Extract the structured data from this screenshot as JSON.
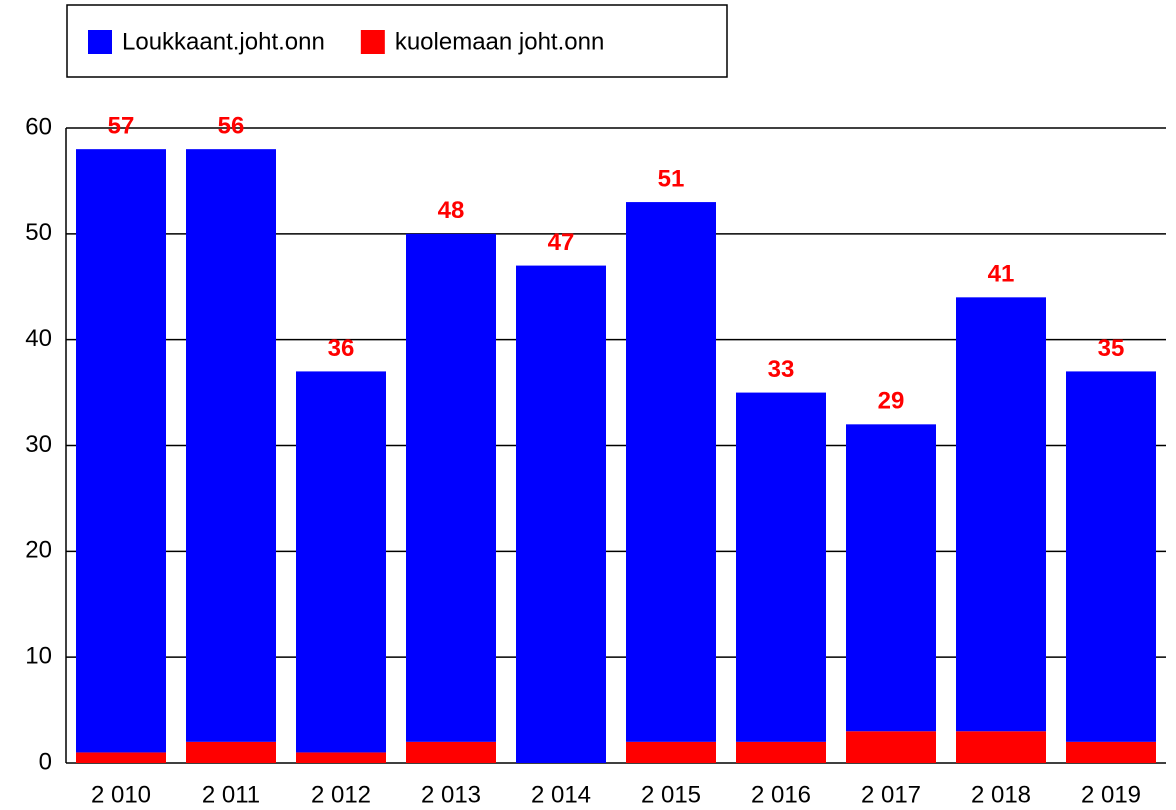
{
  "chart_data": {
    "type": "stacked_bar",
    "categories": [
      "2 010",
      "2 011",
      "2 012",
      "2 013",
      "2 014",
      "2 015",
      "2 016",
      "2 017",
      "2 018",
      "2 019"
    ],
    "series": [
      {
        "name": "kuolemaan joht.onn",
        "color": "#ff0000",
        "values": [
          1,
          2,
          1,
          2,
          0,
          2,
          2,
          3,
          3,
          2
        ]
      },
      {
        "name": "Loukkaant.joht.onn",
        "color": "#0000ff",
        "values": [
          57,
          56,
          36,
          48,
          47,
          51,
          33,
          29,
          41,
          35
        ]
      }
    ],
    "legend_order": [
      1,
      0
    ],
    "ylim": [
      0,
      60
    ],
    "yticks": [
      0,
      10,
      20,
      30,
      40,
      50,
      60
    ],
    "grid": true
  }
}
